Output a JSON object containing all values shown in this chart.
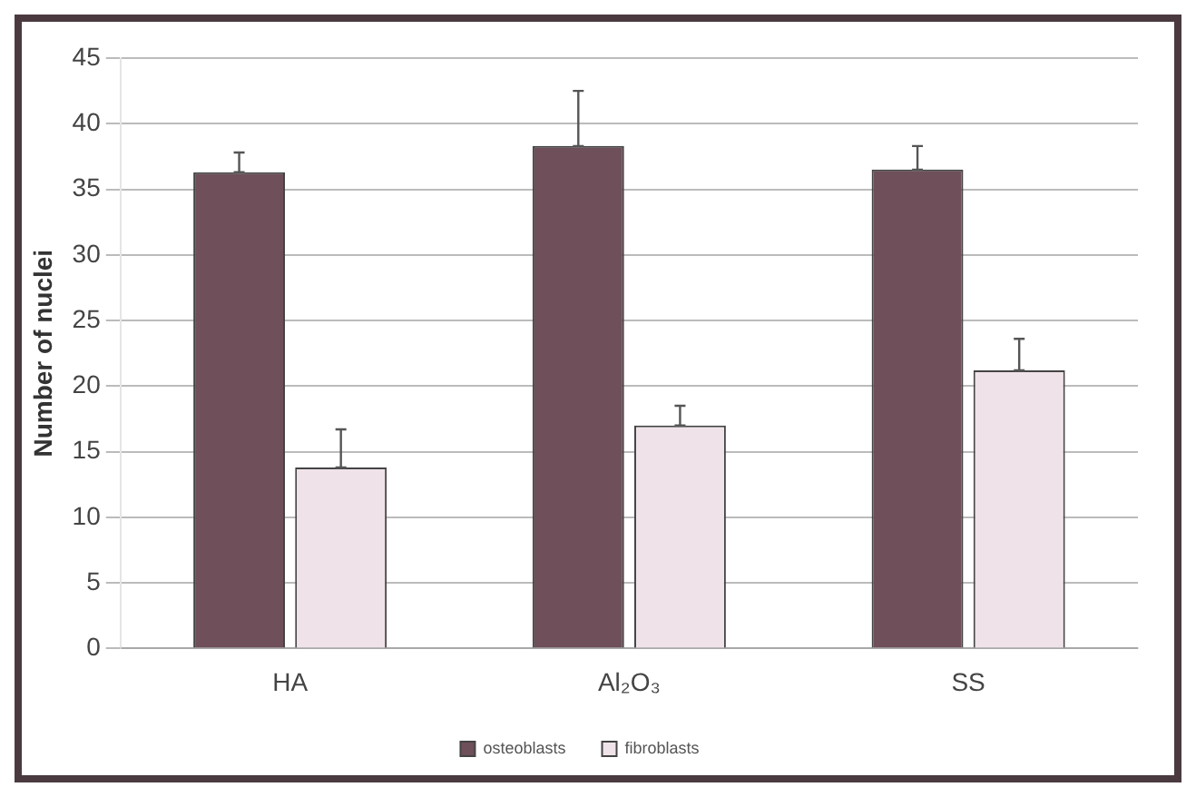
{
  "chart_data": {
    "type": "bar",
    "ylabel": "Number of nuclei",
    "categories": [
      "HA",
      "Al₂O₃",
      "SS"
    ],
    "series": [
      {
        "name": "osteoblasts",
        "color": "#6e4f5a",
        "values": [
          36.3,
          38.3,
          36.5
        ],
        "errors": [
          [
            36.3,
            37.8
          ],
          [
            38.3,
            42.5
          ],
          [
            36.5,
            38.3
          ]
        ]
      },
      {
        "name": "fibroblasts",
        "color": "#efe3e9",
        "values": [
          13.8,
          17,
          21.2
        ],
        "errors": [
          [
            13.8,
            16.7
          ],
          [
            17,
            18.5
          ],
          [
            21.2,
            23.6
          ]
        ]
      }
    ],
    "ylim": [
      0,
      45
    ],
    "yticks": [
      0,
      5,
      10,
      15,
      20,
      25,
      30,
      35,
      40,
      45
    ],
    "grid": "y",
    "legend": "bottom"
  }
}
